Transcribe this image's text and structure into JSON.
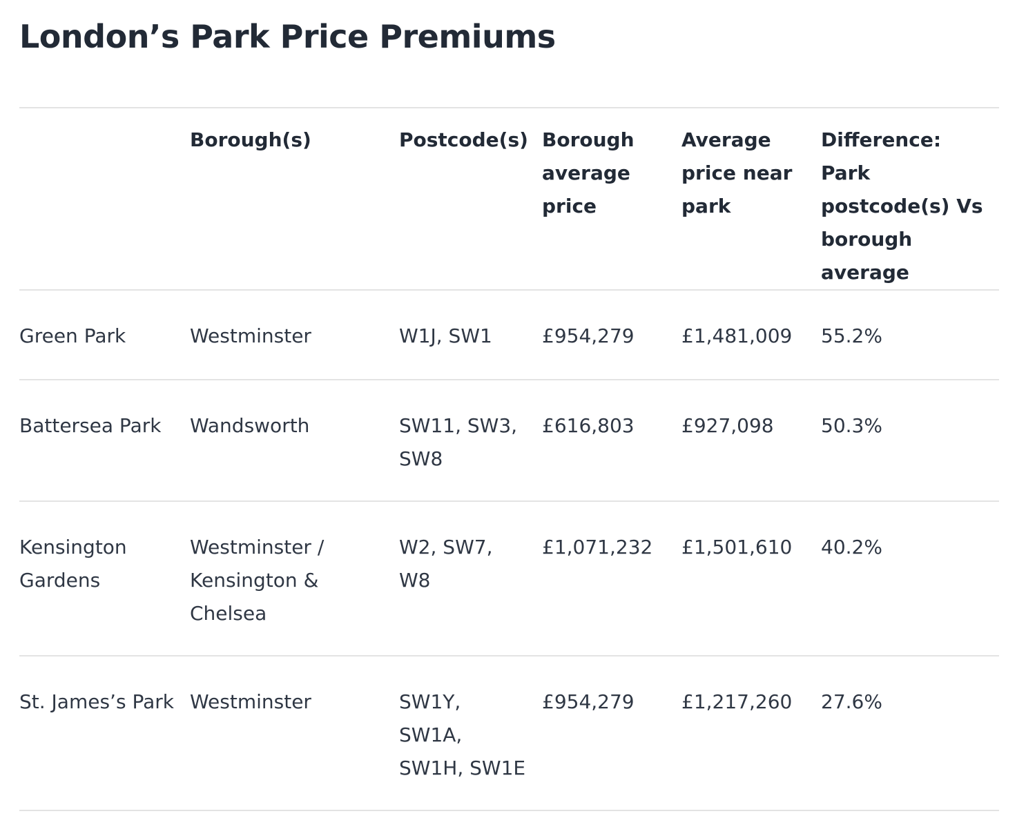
{
  "page": {
    "title": "London’s Park Price Premiums"
  },
  "table": {
    "headers": [
      "",
      "Borough(s)",
      "Postcode(s)",
      "Borough average price",
      "Average price near park",
      "Difference: Park postcode(s) Vs borough average"
    ],
    "rows": [
      [
        "Green Park",
        "Westminster",
        "W1J, SW1",
        "£954,279",
        "£1,481,009",
        "55.2%"
      ],
      [
        "Battersea Park",
        "Wandsworth",
        "SW11, SW3, SW8",
        "£616,803",
        "£927,098",
        "50.3%"
      ],
      [
        "Kensington Gardens",
        "Westminster / Kensington & Chelsea",
        "W2, SW7, W8",
        "£1,071,232",
        "£1,501,610",
        "40.2%"
      ],
      [
        "St. James’s Park",
        "Westminster",
        "SW1Y, SW1A, SW1H, SW1E",
        "£954,279",
        "£1,217,260",
        "27.6%"
      ]
    ]
  }
}
